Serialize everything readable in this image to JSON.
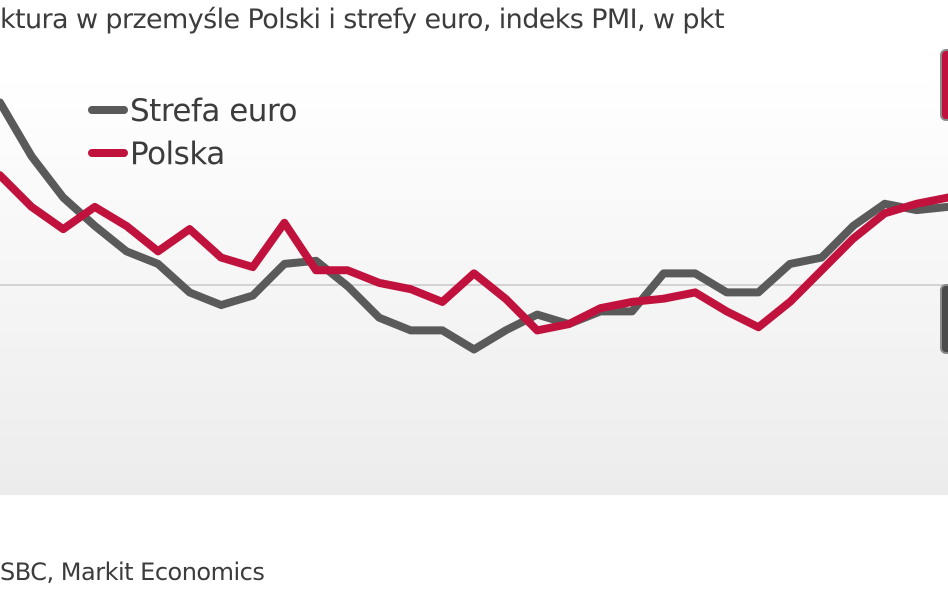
{
  "title": "ktura w przemyśle Polski i strefy euro, indeks PMI, w pkt",
  "source": "SBC, Markit Economics",
  "chart_data": {
    "type": "line",
    "title": "ktura w przemyśle Polski i strefy euro, indeks PMI, w pkt",
    "xlabel": "",
    "ylabel": "",
    "legend_position": "top-left",
    "reference_line": 50,
    "ylim": [
      42.9,
      56.2
    ],
    "grid": false,
    "series": [
      {
        "name": "Strefa euro",
        "color": "#5a5a5a",
        "values": [
          55.3,
          53.6,
          52.3,
          51.4,
          50.6,
          50.2,
          49.3,
          48.9,
          49.2,
          50.2,
          50.3,
          49.5,
          48.5,
          48.1,
          48.1,
          47.5,
          48.1,
          48.6,
          48.3,
          48.7,
          48.7,
          49.9,
          49.9,
          49.3,
          49.3,
          50.2,
          50.4,
          51.4,
          52.1,
          51.9,
          52.0
        ]
      },
      {
        "name": "Polska",
        "color": "#c0123d",
        "values": [
          53.0,
          52.0,
          51.3,
          52.0,
          51.4,
          50.6,
          51.3,
          50.4,
          50.1,
          51.5,
          50.0,
          50.0,
          49.6,
          49.4,
          49.0,
          49.9,
          49.1,
          48.1,
          48.3,
          48.8,
          49.0,
          49.1,
          49.3,
          48.7,
          48.2,
          49.0,
          50.0,
          51.0,
          51.8,
          52.1,
          52.3
        ]
      }
    ]
  }
}
